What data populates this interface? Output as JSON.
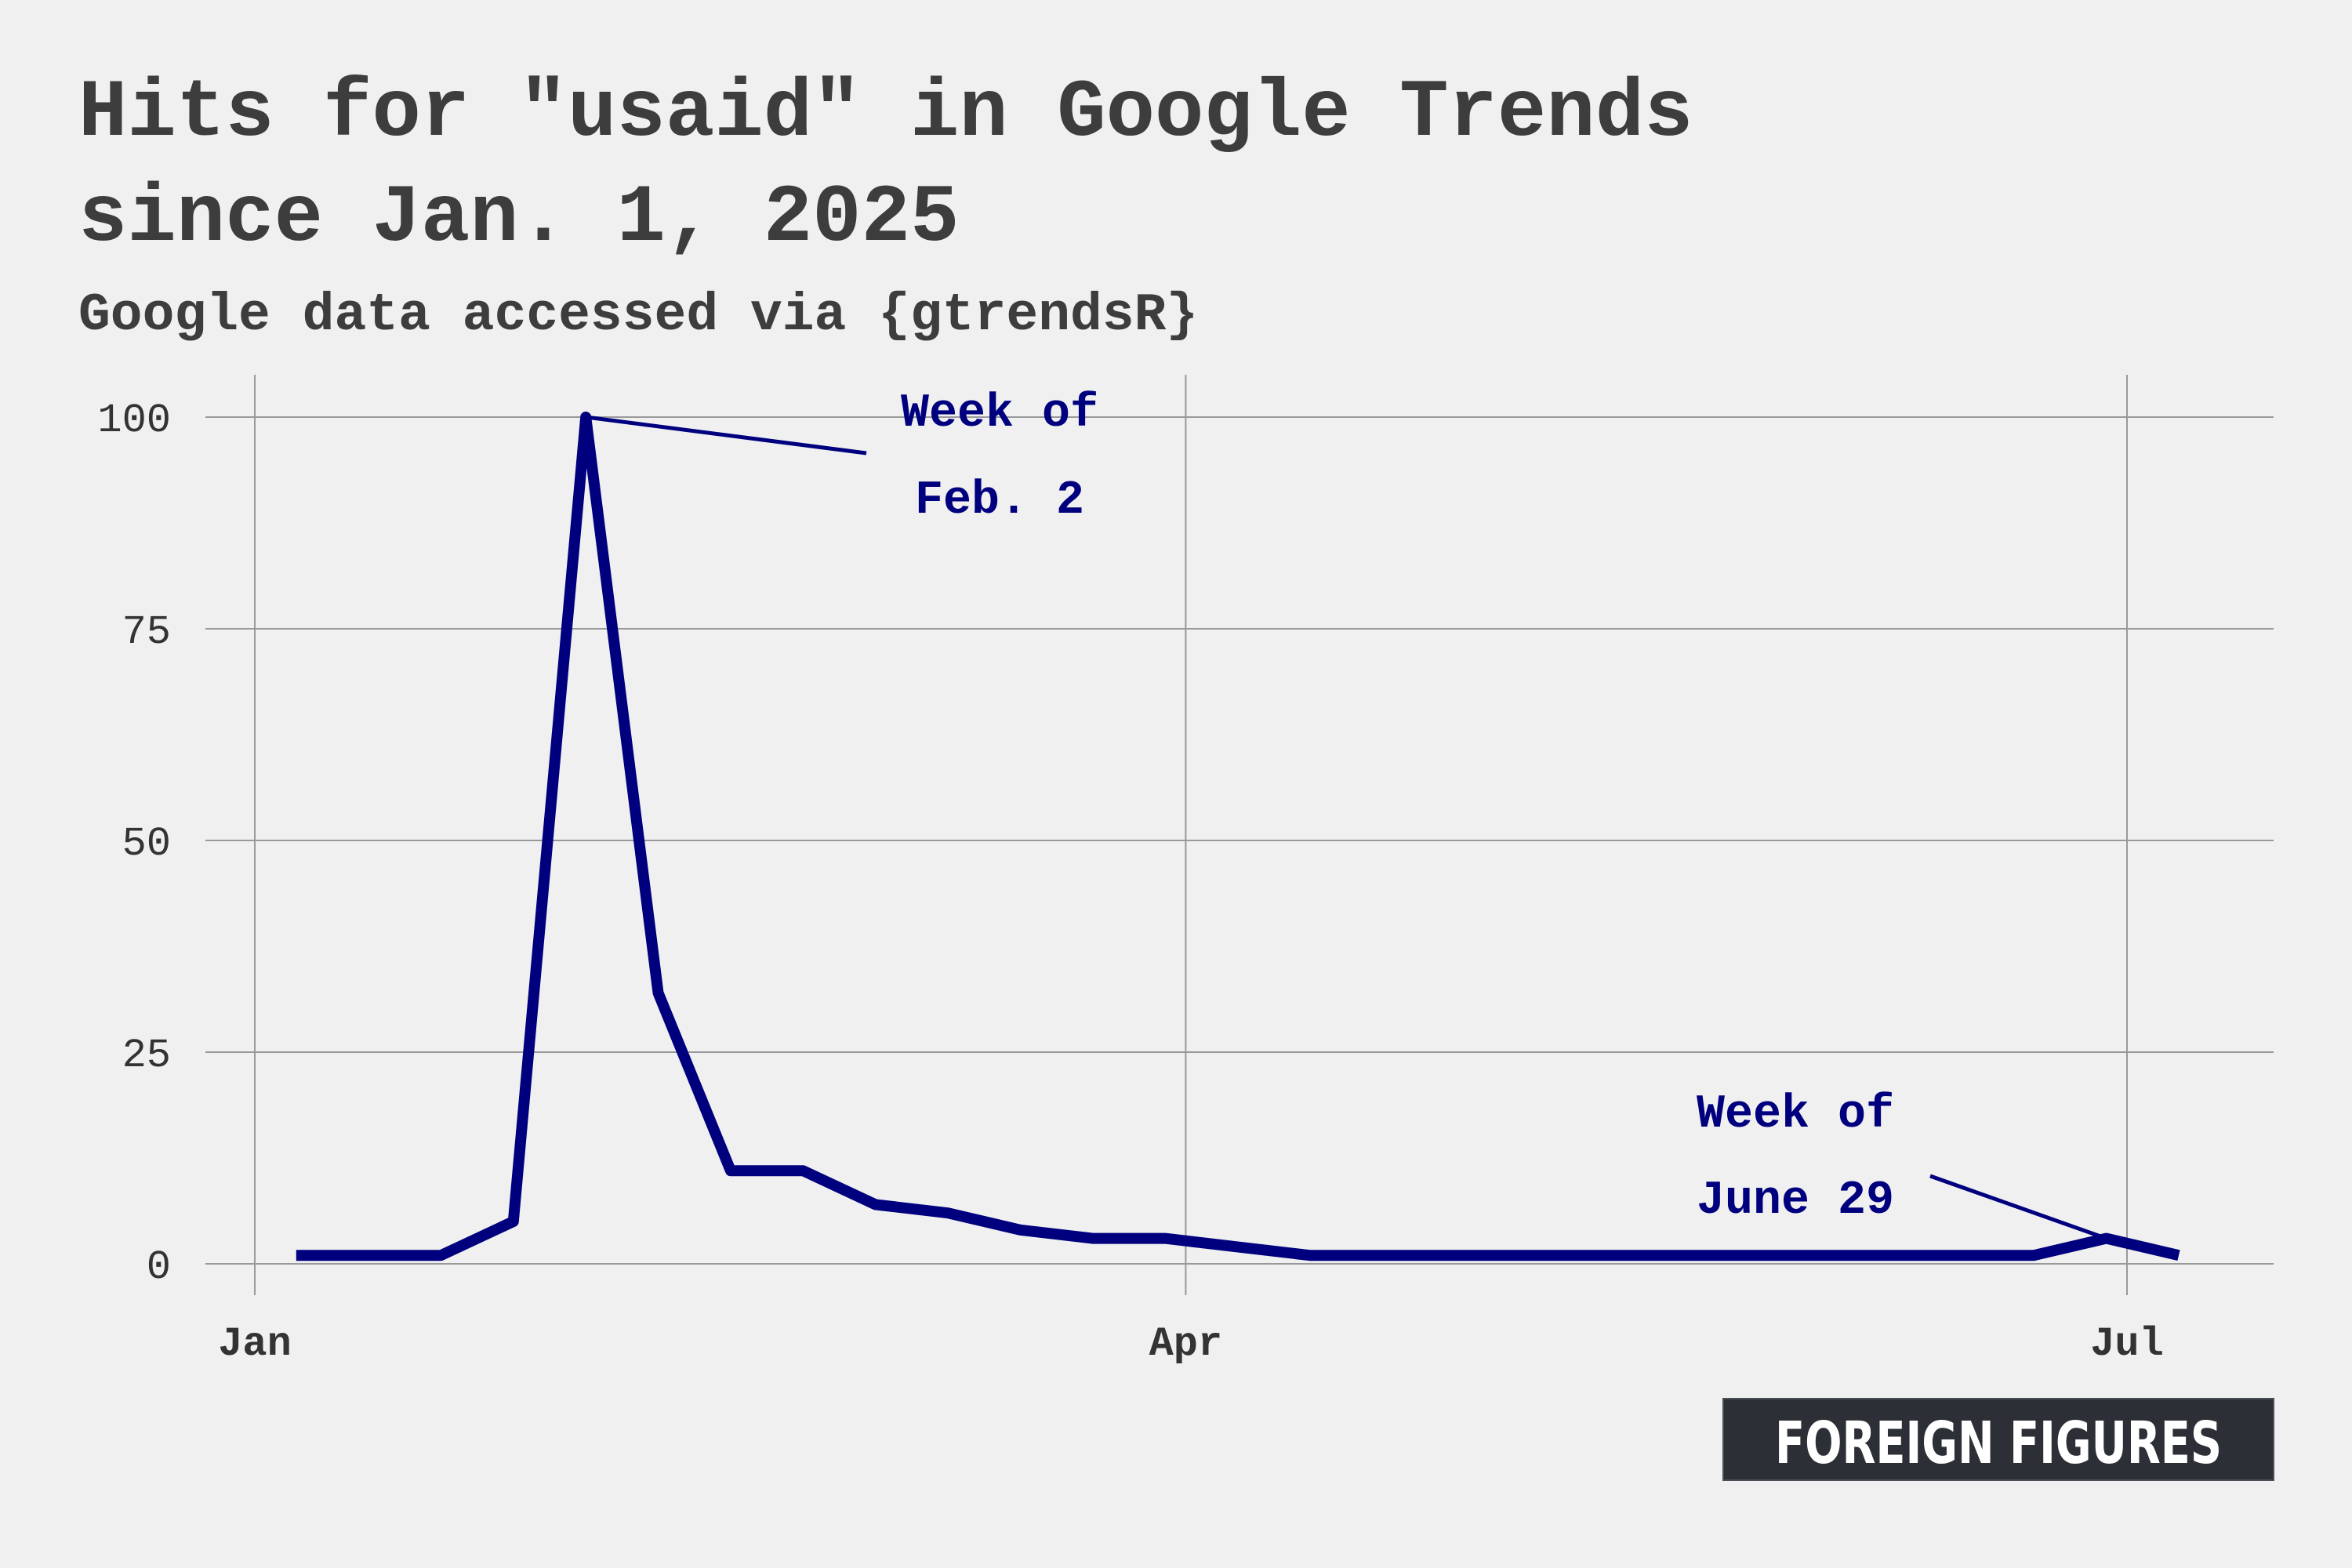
{
  "chart_data": {
    "type": "line",
    "title_lines": [
      "Hits for \"usaid\" in Google Trends",
      "since Jan. 1, 2025"
    ],
    "subtitle": "Google data accessed via {gtrendsR}",
    "xlabel": "",
    "ylabel": "",
    "ylim": [
      0,
      100
    ],
    "xlim": [
      "2024-12-26",
      "2025-07-11"
    ],
    "y_ticks": [
      "0",
      "25",
      "50",
      "75",
      "100"
    ],
    "x_ticks": [
      {
        "label": "Jan",
        "date": "2025-01-01"
      },
      {
        "label": "Apr",
        "date": "2025-04-01"
      },
      {
        "label": "Jul",
        "date": "2025-07-01"
      }
    ],
    "line_color": "#00007f",
    "grid": true,
    "series": [
      {
        "x": [
          "2025-01-05",
          "2025-01-12",
          "2025-01-19",
          "2025-01-26",
          "2025-02-02",
          "2025-02-09",
          "2025-02-16",
          "2025-02-23",
          "2025-03-02",
          "2025-03-09",
          "2025-03-16",
          "2025-03-23",
          "2025-03-30",
          "2025-04-06",
          "2025-04-13",
          "2025-04-20",
          "2025-04-27",
          "2025-05-04",
          "2025-05-11",
          "2025-05-18",
          "2025-05-25",
          "2025-06-01",
          "2025-06-08",
          "2025-06-15",
          "2025-06-22",
          "2025-06-29",
          "2025-07-06"
        ],
        "values": [
          1,
          1,
          1,
          5,
          100,
          32,
          11,
          11,
          7,
          6,
          4,
          3,
          3,
          2,
          1,
          1,
          1,
          1,
          1,
          1,
          1,
          1,
          1,
          1,
          1,
          3,
          1
        ]
      }
    ],
    "annotations": [
      {
        "lines": [
          "Week of",
          "Feb. 2"
        ],
        "date": "2025-02-02",
        "value": 100
      },
      {
        "lines": [
          "Week of",
          "June 29"
        ],
        "date": "2025-06-29",
        "value": 3
      }
    ]
  },
  "logo": {
    "text": "FOREIGN FIGURES"
  }
}
